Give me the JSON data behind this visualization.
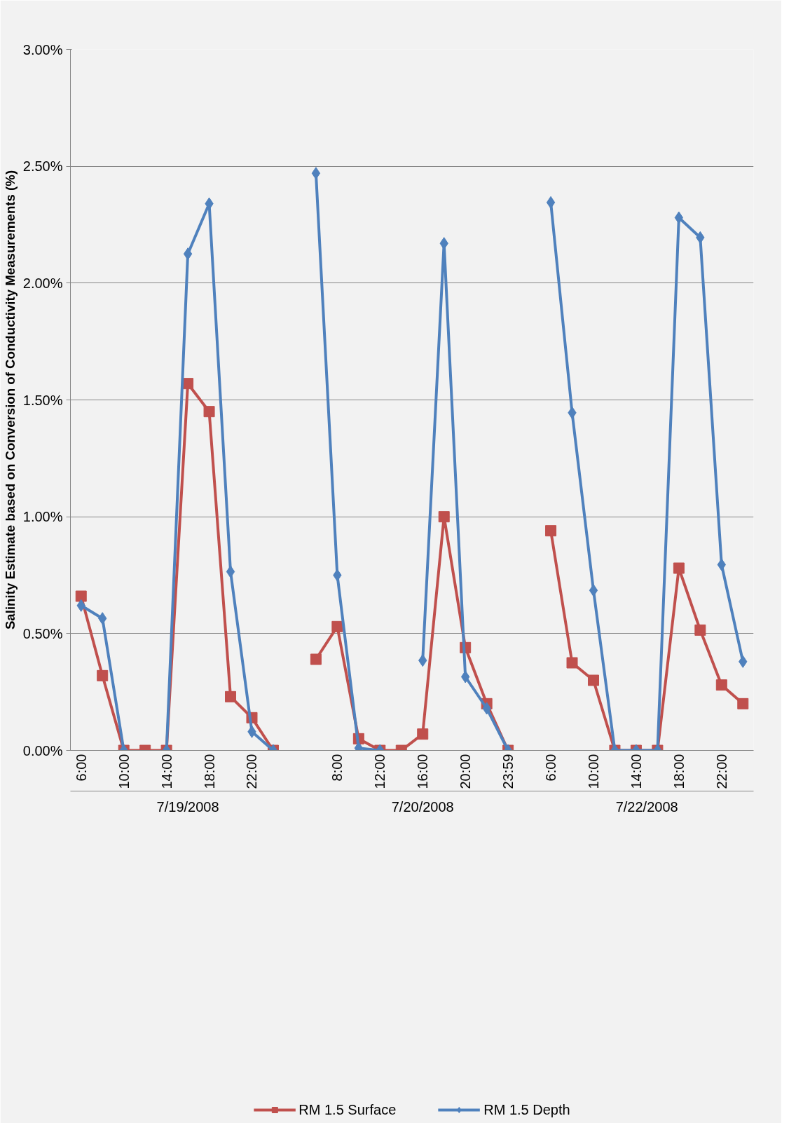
{
  "chart_data": {
    "type": "line",
    "ylabel": "Salinity Estimate based on Conversion of Conductivity Measurements (%)",
    "categories": [
      "6:00",
      null,
      "10:00",
      null,
      "14:00",
      null,
      "18:00",
      null,
      "22:00",
      null,
      null,
      null,
      "8:00",
      null,
      "12:00",
      null,
      "16:00",
      null,
      "20:00",
      null,
      "23:59",
      null,
      "6:00",
      null,
      "10:00",
      null,
      "14:00",
      null,
      "18:00",
      null,
      "22:00",
      null
    ],
    "series": [
      {
        "name": "RM 1.5 Surface",
        "color": "#c0504d",
        "marker": "square",
        "values": [
          0.66,
          0.32,
          0,
          0,
          0,
          1.57,
          1.45,
          0.23,
          0.14,
          0,
          null,
          0.39,
          0.53,
          0.05,
          0,
          0,
          0.07,
          1.0,
          0.44,
          0.2,
          0,
          null,
          0.94,
          0.375,
          0.3,
          0,
          0,
          0,
          0.78,
          0.515,
          0.28,
          0.2
        ]
      },
      {
        "name": "RM 1.5 Depth",
        "color": "#4f81bd",
        "marker": "diamond",
        "values": [
          0.62,
          0.565,
          0,
          null,
          0,
          2.125,
          2.34,
          0.765,
          0.08,
          0,
          null,
          2.47,
          0.75,
          0.01,
          0,
          null,
          0.385,
          2.17,
          0.315,
          0.18,
          0,
          null,
          2.345,
          1.445,
          0.685,
          0,
          0,
          0,
          2.28,
          2.195,
          0.795,
          0.38
        ]
      }
    ],
    "annotations": [
      "7/19/2008",
      "7/20/2008",
      "7/22/2008"
    ],
    "ylim": [
      0,
      3
    ],
    "yticks": [
      {
        "value": 0,
        "label": "0.00%"
      },
      {
        "value": 0.5,
        "label": "0.50%"
      },
      {
        "value": 1,
        "label": "1.00%"
      },
      {
        "value": 1.5,
        "label": "1.50%"
      },
      {
        "value": 2,
        "label": "2.00%"
      },
      {
        "value": 2.5,
        "label": "2.50%"
      },
      {
        "value": 3,
        "label": "3.00%"
      }
    ],
    "grid": "y",
    "legend": "bottom",
    "line_style": "solid"
  }
}
